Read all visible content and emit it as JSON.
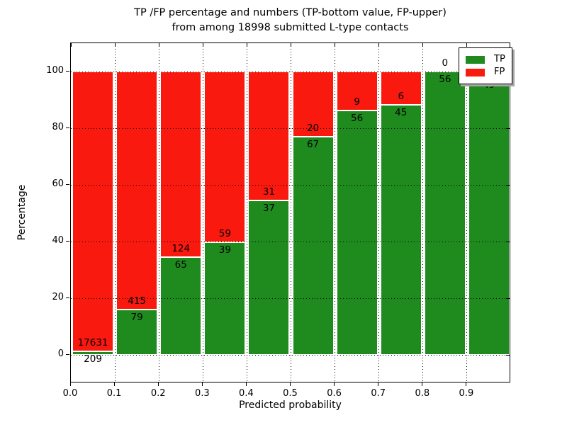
{
  "figure": {
    "title_lines": [
      "TP /FP percentage and numbers (TP-bottom value, FP-upper)",
      "from among 18998 submitted L-type contacts"
    ],
    "xlabel": "Predicted probability",
    "ylabel": "Percentage"
  },
  "chart_data": {
    "type": "bar",
    "stacked": true,
    "orientation": "vertical",
    "title": "TP /FP percentage and numbers (TP-bottom value, FP-upper) from among 18998 submitted L-type contacts",
    "xlabel": "Predicted probability",
    "ylabel": "Percentage",
    "xlim": [
      0.0,
      1.0
    ],
    "ylim": [
      -10,
      110
    ],
    "x_tick_labels": [
      "0.0",
      "0.1",
      "0.2",
      "0.3",
      "0.4",
      "0.5",
      "0.6",
      "0.7",
      "0.8",
      "0.9"
    ],
    "y_tick_values": [
      0,
      20,
      40,
      60,
      80,
      100
    ],
    "grid": "dotted, both axes, drawn over bars",
    "legend": {
      "position": "upper right",
      "entries": [
        {
          "label": "TP",
          "color": "#1f8b1f"
        },
        {
          "label": "FP",
          "color": "#f9190f"
        }
      ]
    },
    "colors": {
      "tp": "#1f8b1f",
      "fp": "#f9190f",
      "bar_edge": "#ffffff"
    },
    "series": [
      {
        "name": "TP",
        "values": [
          209,
          79,
          65,
          39,
          37,
          67,
          56,
          45,
          56,
          49
        ]
      },
      {
        "name": "FP",
        "values": [
          17631,
          415,
          124,
          59,
          31,
          20,
          9,
          6,
          0,
          1
        ]
      }
    ],
    "bins": [
      {
        "x0": 0.0,
        "x1": 0.1,
        "tp": 209,
        "fp": 17631,
        "tp_pct": 1.17,
        "tp_label": "209",
        "fp_label": "17631"
      },
      {
        "x0": 0.1,
        "x1": 0.2,
        "tp": 79,
        "fp": 415,
        "tp_pct": 15.99,
        "tp_label": "79",
        "fp_label": "415"
      },
      {
        "x0": 0.2,
        "x1": 0.3,
        "tp": 65,
        "fp": 124,
        "tp_pct": 34.39,
        "tp_label": "65",
        "fp_label": "124"
      },
      {
        "x0": 0.3,
        "x1": 0.4,
        "tp": 39,
        "fp": 59,
        "tp_pct": 39.8,
        "tp_label": "39",
        "fp_label": "59"
      },
      {
        "x0": 0.4,
        "x1": 0.5,
        "tp": 37,
        "fp": 31,
        "tp_pct": 54.41,
        "tp_label": "37",
        "fp_label": "31"
      },
      {
        "x0": 0.5,
        "x1": 0.6,
        "tp": 67,
        "fp": 20,
        "tp_pct": 77.01,
        "tp_label": "67",
        "fp_label": "20"
      },
      {
        "x0": 0.6,
        "x1": 0.7,
        "tp": 56,
        "fp": 9,
        "tp_pct": 86.15,
        "tp_label": "56",
        "fp_label": "9"
      },
      {
        "x0": 0.7,
        "x1": 0.8,
        "tp": 45,
        "fp": 6,
        "tp_pct": 88.24,
        "tp_label": "45",
        "fp_label": "6"
      },
      {
        "x0": 0.8,
        "x1": 0.9,
        "tp": 56,
        "fp": 0,
        "tp_pct": 100.0,
        "tp_label": "56",
        "fp_label": "0"
      },
      {
        "x0": 0.9,
        "x1": 1.0,
        "tp": 49,
        "fp": 1,
        "tp_pct": 98.0,
        "tp_label": "49",
        "fp_label": ""
      }
    ]
  }
}
